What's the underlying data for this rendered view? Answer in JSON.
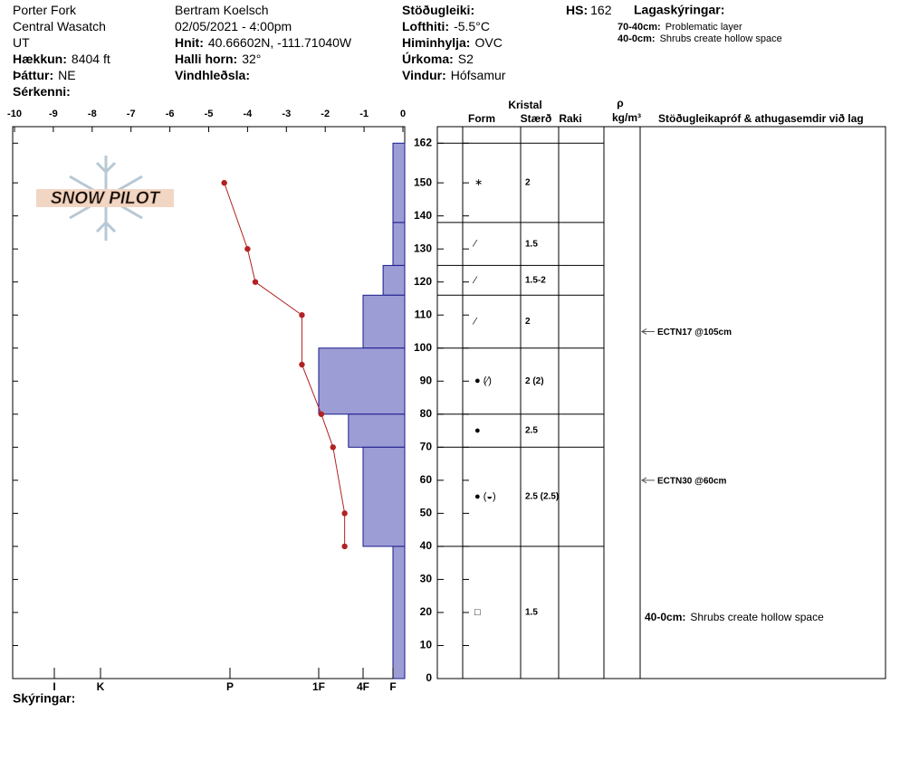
{
  "header": {
    "columns": [
      [
        {
          "text": "Porter Fork"
        },
        {
          "text": "Central Wasatch"
        },
        {
          "text": "UT"
        },
        {
          "label": "Hækkun:",
          "value": "8404 ft"
        },
        {
          "label": "Þáttur:",
          "value": "NE"
        },
        {
          "label": "Sérkenni:"
        }
      ],
      [
        {
          "text": "Bertram Koelsch"
        },
        {
          "text": "02/05/2021 - 4:00pm"
        },
        {
          "label": "Hnit:",
          "value": "40.66602N, -111.71040W"
        },
        {
          "label": "Halli horn:",
          "value": "32°"
        },
        {
          "label": "Vindhleðsla:"
        }
      ],
      [
        {
          "label": "Stöðugleiki:"
        },
        {
          "label": "Lofthiti:",
          "value": "-5.5°C"
        },
        {
          "label": "Himinhylja:",
          "value": "OVC"
        },
        {
          "label": "Úrkoma:",
          "value": "S2"
        },
        {
          "label": "Vindur:",
          "value": "Hófsamur"
        }
      ]
    ],
    "hs": {
      "label": "HS:",
      "value": "162"
    },
    "layer_notes": {
      "title": "Lagaskýringar:",
      "items": [
        {
          "label": "70-40cm:",
          "value": "Problematic layer"
        },
        {
          "label": "40-0cm:",
          "value": "Shrubs create hollow space"
        }
      ]
    },
    "footer": "Skýringar:",
    "logo": "SNOW PILOT"
  },
  "chart_data": {
    "type": "snowprofile",
    "xlim": [
      -10,
      0
    ],
    "xticks": [
      -10,
      -9,
      -8,
      -7,
      -6,
      -5,
      -4,
      -3,
      -2,
      -1,
      0
    ],
    "ylim": [
      0,
      167
    ],
    "yticks": [
      0,
      10,
      20,
      30,
      40,
      50,
      60,
      70,
      80,
      90,
      100,
      110,
      120,
      130,
      140,
      150,
      162
    ],
    "hardness_ticks": [
      {
        "value": 6,
        "label": "I"
      },
      {
        "value": 5,
        "label": "K"
      },
      {
        "value": 4,
        "label": "P"
      },
      {
        "value": 3,
        "label": "1F"
      },
      {
        "value": 2,
        "label": "4F"
      },
      {
        "value": 1,
        "label": "F"
      }
    ],
    "temperature": {
      "color": "#b22222",
      "depths": [
        150,
        130,
        120,
        110,
        95,
        80,
        70,
        50,
        40
      ],
      "values": [
        -4.6,
        -4.0,
        -3.8,
        -2.6,
        -2.6,
        -2.1,
        -1.8,
        -1.5,
        -1.5
      ]
    },
    "bar_color": "#9d9dd6",
    "columns": {
      "crystal": "Kristal",
      "form": "Form",
      "size": "Stærð",
      "moisture": "Raki",
      "density": "ρ",
      "density_unit": "kg/m³",
      "tests": "Stöðugleikapróf & athugasemdir við lag"
    },
    "layers": [
      {
        "top": 162,
        "bottom": 138,
        "hardness": 1,
        "form": "∗",
        "size": "2"
      },
      {
        "top": 138,
        "bottom": 125,
        "hardness": 1,
        "form": "⁄",
        "size": "1.5"
      },
      {
        "top": 125,
        "bottom": 116,
        "hardness": 1.33,
        "form": "⁄",
        "size": "1.5-2"
      },
      {
        "top": 116,
        "bottom": 100,
        "hardness": 2,
        "form": "⁄",
        "size": "2"
      },
      {
        "top": 100,
        "bottom": 80,
        "hardness": 3,
        "form": "●  (⁄)",
        "size": "2 (2)"
      },
      {
        "top": 80,
        "bottom": 70,
        "hardness": 2.33,
        "form": "●",
        "size": "2.5"
      },
      {
        "top": 70,
        "bottom": 40,
        "hardness": 2,
        "form": "●  (◒)",
        "size": "2.5 (2.5)"
      },
      {
        "top": 40,
        "bottom": 0,
        "hardness": 1,
        "form": "□",
        "size": "1.5",
        "comment_label": "40-0cm:",
        "comment": "Shrubs create hollow space"
      }
    ],
    "stability_tests": [
      {
        "depth": 105,
        "label": "ECTN17 @105cm"
      },
      {
        "depth": 60,
        "label": "ECTN30 @60cm"
      }
    ]
  }
}
